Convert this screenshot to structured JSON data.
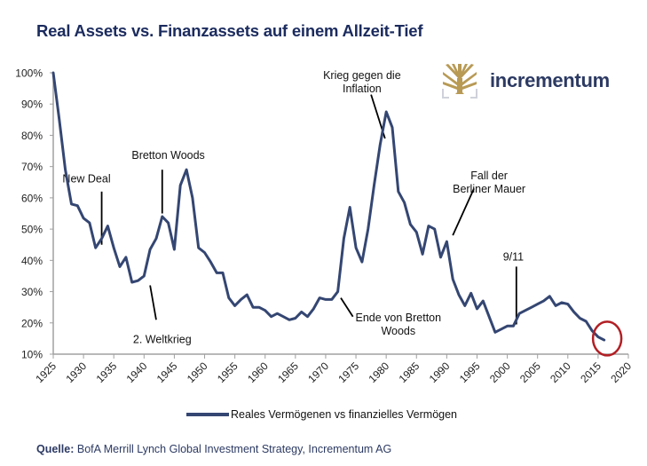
{
  "title": "Real Assets vs. Finanzassets auf einem Allzeit-Tief",
  "logo": {
    "text": "incrementum",
    "icon": "tree-icon",
    "color": "#b89a55"
  },
  "source": {
    "label": "Quelle:",
    "text": "BofA Merrill Lynch Global Investment Strategy, Incrementum AG"
  },
  "colors": {
    "line": "#344672",
    "title": "#1b2b5e",
    "highlight_circle": "#b21f24",
    "axis": "#a0a0a0"
  },
  "chart_data": {
    "type": "line",
    "title": "Real Assets vs. Finanzassets auf einem Allzeit-Tief",
    "xlabel": "",
    "ylabel": "",
    "xlim": [
      1925,
      2020
    ],
    "ylim": [
      10,
      100
    ],
    "x_ticks": [
      "1925",
      "1930",
      "1935",
      "1940",
      "1945",
      "1950",
      "1955",
      "1960",
      "1965",
      "1970",
      "1975",
      "1980",
      "1985",
      "1990",
      "1995",
      "2000",
      "2005",
      "2010",
      "2015",
      "2020"
    ],
    "y_ticks": [
      "10%",
      "20%",
      "30%",
      "40%",
      "50%",
      "60%",
      "70%",
      "80%",
      "90%",
      "100%"
    ],
    "grid": false,
    "legend_position": "bottom",
    "series": [
      {
        "name": "Reales Vermögenen vs finanzielles Vermögen",
        "x": [
          1925,
          1926,
          1927,
          1928,
          1929,
          1930,
          1931,
          1932,
          1933,
          1934,
          1935,
          1936,
          1937,
          1938,
          1939,
          1940,
          1941,
          1942,
          1943,
          1944,
          1945,
          1946,
          1947,
          1948,
          1949,
          1950,
          1951,
          1952,
          1953,
          1954,
          1955,
          1956,
          1957,
          1958,
          1959,
          1960,
          1961,
          1962,
          1963,
          1964,
          1965,
          1966,
          1967,
          1968,
          1969,
          1970,
          1971,
          1972,
          1973,
          1974,
          1975,
          1976,
          1977,
          1978,
          1979,
          1980,
          1981,
          1982,
          1983,
          1984,
          1985,
          1986,
          1987,
          1988,
          1989,
          1990,
          1991,
          1992,
          1993,
          1994,
          1995,
          1996,
          1997,
          1998,
          1999,
          2000,
          2001,
          2002,
          2003,
          2004,
          2005,
          2006,
          2007,
          2008,
          2009,
          2010,
          2011,
          2012,
          2013,
          2014,
          2015,
          2016
        ],
        "values": [
          100,
          85,
          69,
          58,
          57.5,
          53.5,
          52,
          44,
          47,
          51,
          44,
          38,
          41,
          33,
          33.5,
          35,
          43.5,
          47,
          54,
          52,
          43.5,
          64,
          69,
          60,
          44,
          42.5,
          39.5,
          36,
          36,
          28,
          25.5,
          27.5,
          29,
          25,
          25,
          24,
          22,
          23,
          22,
          21,
          21.5,
          23.5,
          22,
          24.5,
          28,
          27.5,
          27.5,
          30,
          47,
          57,
          44,
          39.5,
          50,
          64,
          77,
          87.5,
          82.5,
          62,
          58.5,
          51.5,
          49,
          42,
          51,
          50,
          41,
          46,
          34,
          29,
          25.5,
          29.5,
          24.5,
          27,
          22,
          17,
          18,
          19,
          19,
          23,
          24,
          25,
          26,
          27,
          28.5,
          25.5,
          26.5,
          26,
          23.5,
          21.5,
          20.5,
          17.5,
          15.5,
          14.5
        ]
      }
    ],
    "annotations": [
      {
        "text": [
          "New Deal"
        ],
        "line_from": [
          1933,
          62
        ],
        "line_to": [
          1933,
          45
        ],
        "label_at": [
          1930.5,
          65
        ]
      },
      {
        "text": [
          "Bretton Woods"
        ],
        "line_from": [
          1943,
          69
        ],
        "line_to": [
          1943,
          55
        ],
        "label_at": [
          1944,
          72.5
        ]
      },
      {
        "text": [
          "2. Weltkrieg"
        ],
        "line_from": [
          1941,
          32
        ],
        "line_to": [
          1942,
          21
        ],
        "label_at": [
          1943,
          13.5
        ]
      },
      {
        "text": [
          "Ende von Bretton",
          "Woods"
        ],
        "line_from": [
          1972.5,
          28
        ],
        "line_to": [
          1974.5,
          22
        ],
        "label_at": [
          1982,
          20.5
        ]
      },
      {
        "text": [
          "Krieg gegen die",
          "Inflation"
        ],
        "line_from": [
          1977.5,
          93
        ],
        "line_to": [
          1979.8,
          79
        ],
        "label_at": [
          1976,
          98
        ]
      },
      {
        "text": [
          "Fall der",
          "Berliner Mauer"
        ],
        "line_from": [
          1994.5,
          63
        ],
        "line_to": [
          1991,
          48
        ],
        "label_at": [
          1997,
          66
        ]
      },
      {
        "text": [
          "9/11"
        ],
        "line_from": [
          2001.5,
          38
        ],
        "line_to": [
          2001.5,
          19.5
        ],
        "label_at": [
          2001,
          40
        ]
      }
    ],
    "highlight": {
      "shape": "circle",
      "center": [
        2016.5,
        15
      ],
      "meaning": "all-time low"
    }
  }
}
